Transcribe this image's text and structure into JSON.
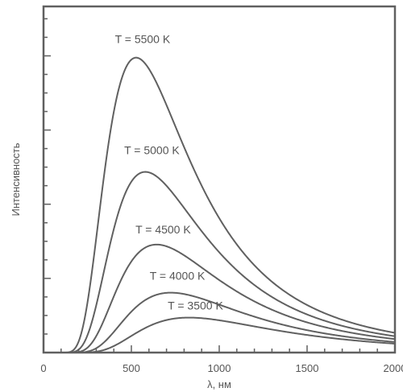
{
  "chart_data": {
    "type": "line",
    "title": "",
    "xlabel": "λ, нм",
    "ylabel": "Интенсивность",
    "xlim": [
      0,
      2000
    ],
    "xticks": [
      "0",
      "500",
      "1000",
      "1500",
      "2000"
    ],
    "ylim": [
      0,
      1
    ],
    "y_tick_labels": "none",
    "grid": false,
    "legend": "none",
    "line_color": "#606060",
    "series": [
      {
        "name": "T = 5500 K",
        "temperature_K": 5500,
        "peak_nm": 527,
        "relative_peak": 0.852
      },
      {
        "name": "T = 5000 K",
        "temperature_K": 5000,
        "peak_nm": 580,
        "relative_peak": 0.522
      },
      {
        "name": "T = 4500 K",
        "temperature_K": 4500,
        "peak_nm": 644,
        "relative_peak": 0.312
      },
      {
        "name": "T = 4000 K",
        "temperature_K": 4000,
        "peak_nm": 725,
        "relative_peak": 0.173
      },
      {
        "name": "T = 3500 K",
        "temperature_K": 3500,
        "peak_nm": 828,
        "relative_peak": 0.101
      }
    ]
  }
}
